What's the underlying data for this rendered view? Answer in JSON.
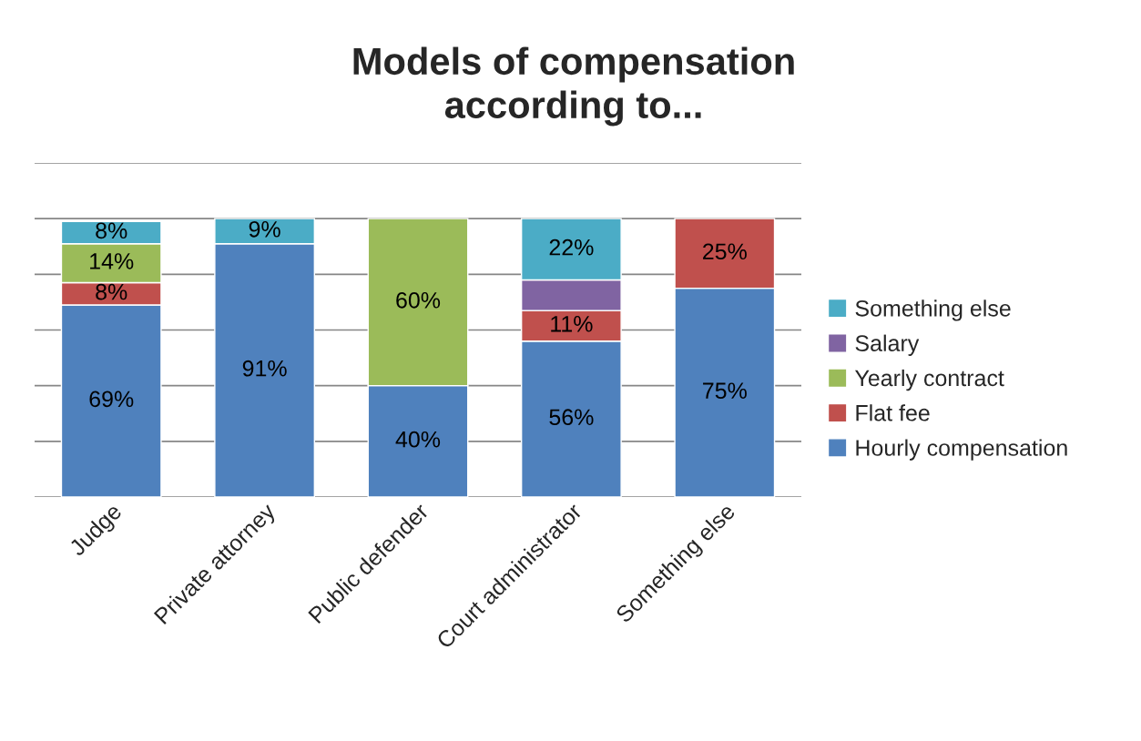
{
  "chart_data": {
    "type": "bar",
    "title": "Models of compensation\naccording to...",
    "stacked": true,
    "categories": [
      "Judge",
      "Private attorney",
      "Public defender",
      "Court administrator",
      "Something else"
    ],
    "series": [
      {
        "name": "Hourly compensation",
        "color": "#4f81bd",
        "values": [
          69,
          91,
          40,
          56,
          75
        ],
        "value_labels": [
          "69%",
          "91%",
          "40%",
          "56%",
          "75%"
        ]
      },
      {
        "name": "Flat fee",
        "color": "#c0504d",
        "values": [
          8,
          null,
          null,
          11,
          25
        ],
        "value_labels": [
          "8%",
          null,
          null,
          "11%",
          "25%"
        ]
      },
      {
        "name": "Yearly contract",
        "color": "#9bbb59",
        "values": [
          14,
          null,
          60,
          null,
          null
        ],
        "value_labels": [
          "14%",
          null,
          "60%",
          null,
          null
        ]
      },
      {
        "name": "Salary",
        "color": "#8064a2",
        "values": [
          null,
          null,
          null,
          11,
          null
        ],
        "value_labels": [
          null,
          null,
          null,
          null,
          null
        ]
      },
      {
        "name": "Something else",
        "color": "#4bacc6",
        "values": [
          8,
          9,
          null,
          22,
          null
        ],
        "value_labels": [
          "8%",
          "9%",
          null,
          "22%",
          null
        ]
      }
    ],
    "ylim": [
      0,
      120
    ],
    "yticks": [
      {
        "value": 0,
        "label": null
      },
      {
        "value": 20,
        "label": null
      },
      {
        "value": 40,
        "label": null
      },
      {
        "value": 60,
        "label": null
      },
      {
        "value": 80,
        "label": null
      },
      {
        "value": 100,
        "label": null
      },
      {
        "value": 120,
        "label": null
      }
    ],
    "tick_labels": "x",
    "grid": "y",
    "legend": "right"
  }
}
